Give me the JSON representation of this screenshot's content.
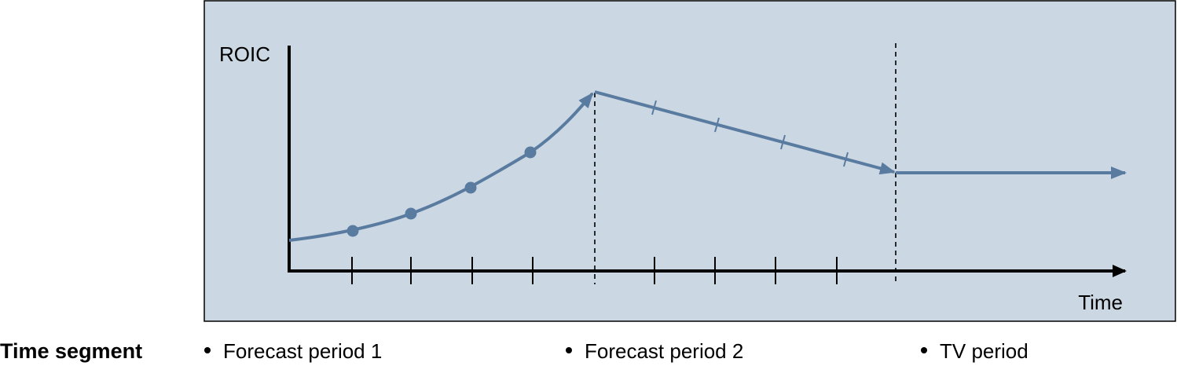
{
  "diagram": {
    "y_axis_label": "ROIC",
    "x_axis_label": "Time",
    "colors": {
      "panel_fill": "#cbd7e3",
      "panel_border": "#000000",
      "curve": "#5a7ba0",
      "axis": "#000000"
    }
  },
  "time_segment": {
    "title": "Time segment",
    "items": [
      {
        "label": "Forecast period 1"
      },
      {
        "label": "Forecast period 2"
      },
      {
        "label": "TV period"
      }
    ]
  }
}
